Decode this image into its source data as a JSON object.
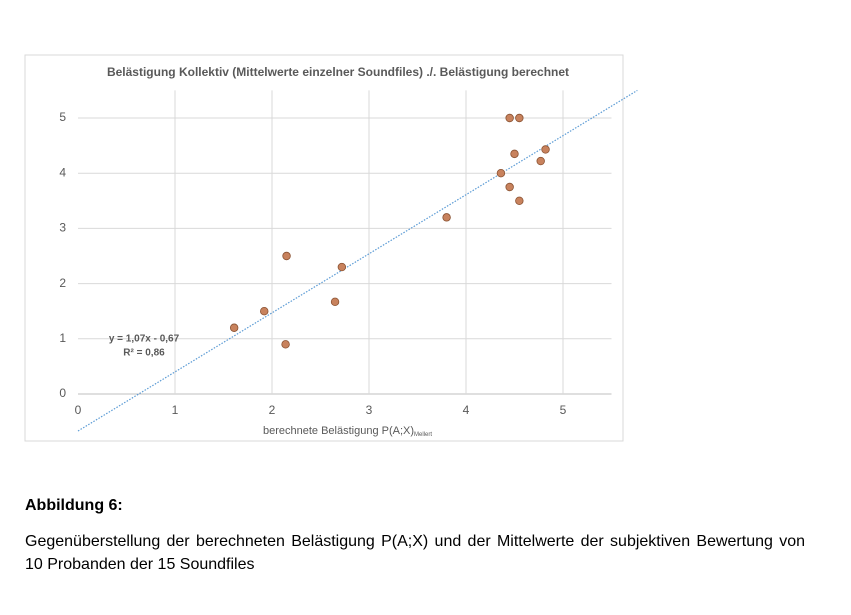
{
  "chart_data": {
    "type": "scatter",
    "title": "Belästigung Kollektiv (Mittelwerte einzelner Soundfiles) ./. Belästigung berechnet",
    "x_label": "berechnete Belästigung P(A;X)",
    "x_label_subscript": "Mellert",
    "x": [
      1.61,
      1.92,
      2.15,
      2.14,
      2.65,
      2.72,
      3.8,
      4.36,
      4.45,
      4.55,
      4.5,
      4.45,
      4.55,
      4.77,
      4.82
    ],
    "values": [
      1.2,
      1.5,
      2.5,
      0.9,
      1.67,
      2.3,
      3.2,
      4.0,
      5.0,
      5.0,
      4.35,
      3.75,
      3.5,
      4.22,
      4.43
    ],
    "color": "#c8825d",
    "xlim": [
      0,
      5.5
    ],
    "ylim": [
      0,
      5.5
    ],
    "xticks": [
      0,
      1,
      2,
      3,
      4,
      5
    ],
    "yticks": [
      0,
      1,
      2,
      3,
      4,
      5
    ],
    "grid": true,
    "trendline": {
      "slope": 1.07,
      "intercept": -0.67,
      "color": "#5b9bd5",
      "equation_label": "y = 1,07x - 0,67",
      "r2_label": "R² = 0,86"
    }
  },
  "caption": {
    "heading": "Abbildung 6:",
    "text": "Gegenüberstellung der berechneten Belästigung P(A;X) und der Mittelwerte der subjektiven Bewertung von 10 Probanden der 15 Soundfiles"
  }
}
